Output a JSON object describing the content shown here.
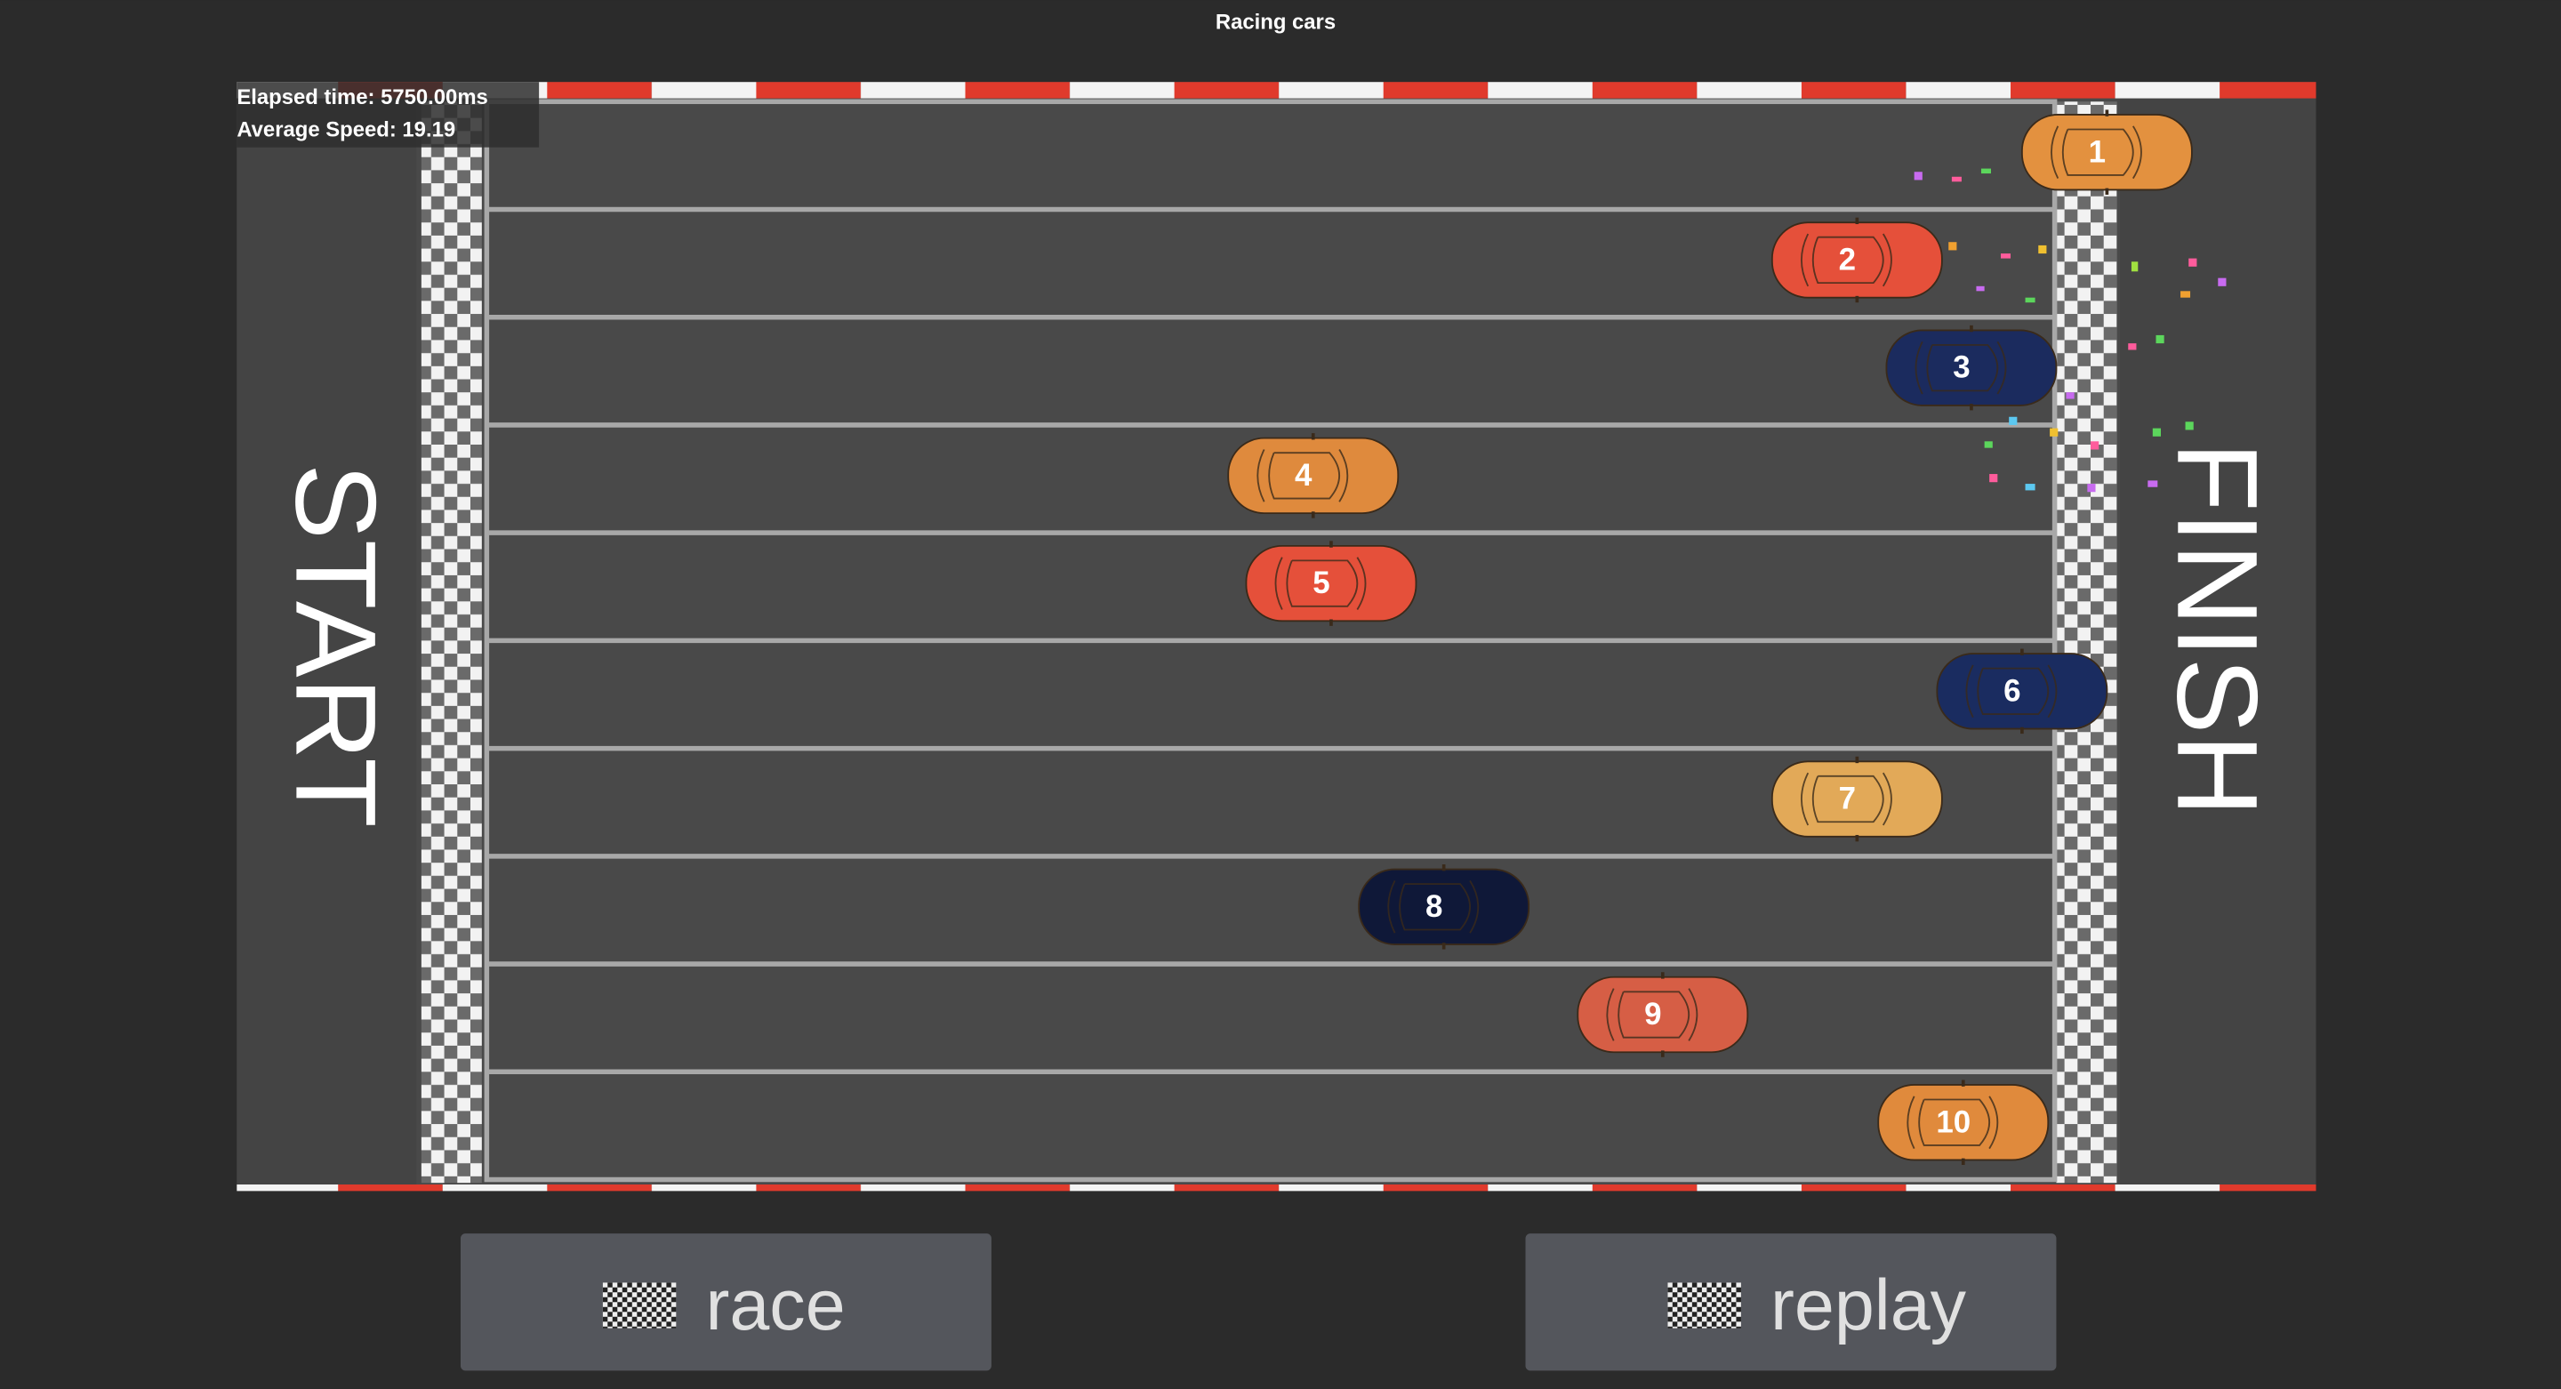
{
  "title": "Racing cars",
  "hud": {
    "elapsed": "Elapsed time: 5750.00ms",
    "speed": "Average Speed: 19.19"
  },
  "track": {
    "start": "START",
    "finish": "FINISH"
  },
  "cars": [
    {
      "label": "1",
      "color": "#e3913f"
    },
    {
      "label": "2",
      "color": "#e5503a"
    },
    {
      "label": "3",
      "color": "#1b2b5e"
    },
    {
      "label": "4",
      "color": "#df8a3d"
    },
    {
      "label": "5",
      "color": "#e5503a"
    },
    {
      "label": "6",
      "color": "#1a2c60"
    },
    {
      "label": "7",
      "color": "#e2a958"
    },
    {
      "label": "8",
      "color": "#0f1838"
    },
    {
      "label": "9",
      "color": "#d65e45"
    },
    {
      "label": "10",
      "color": "#e08a3c"
    }
  ],
  "buttons": [
    {
      "label": "race"
    },
    {
      "label": "replay"
    }
  ]
}
